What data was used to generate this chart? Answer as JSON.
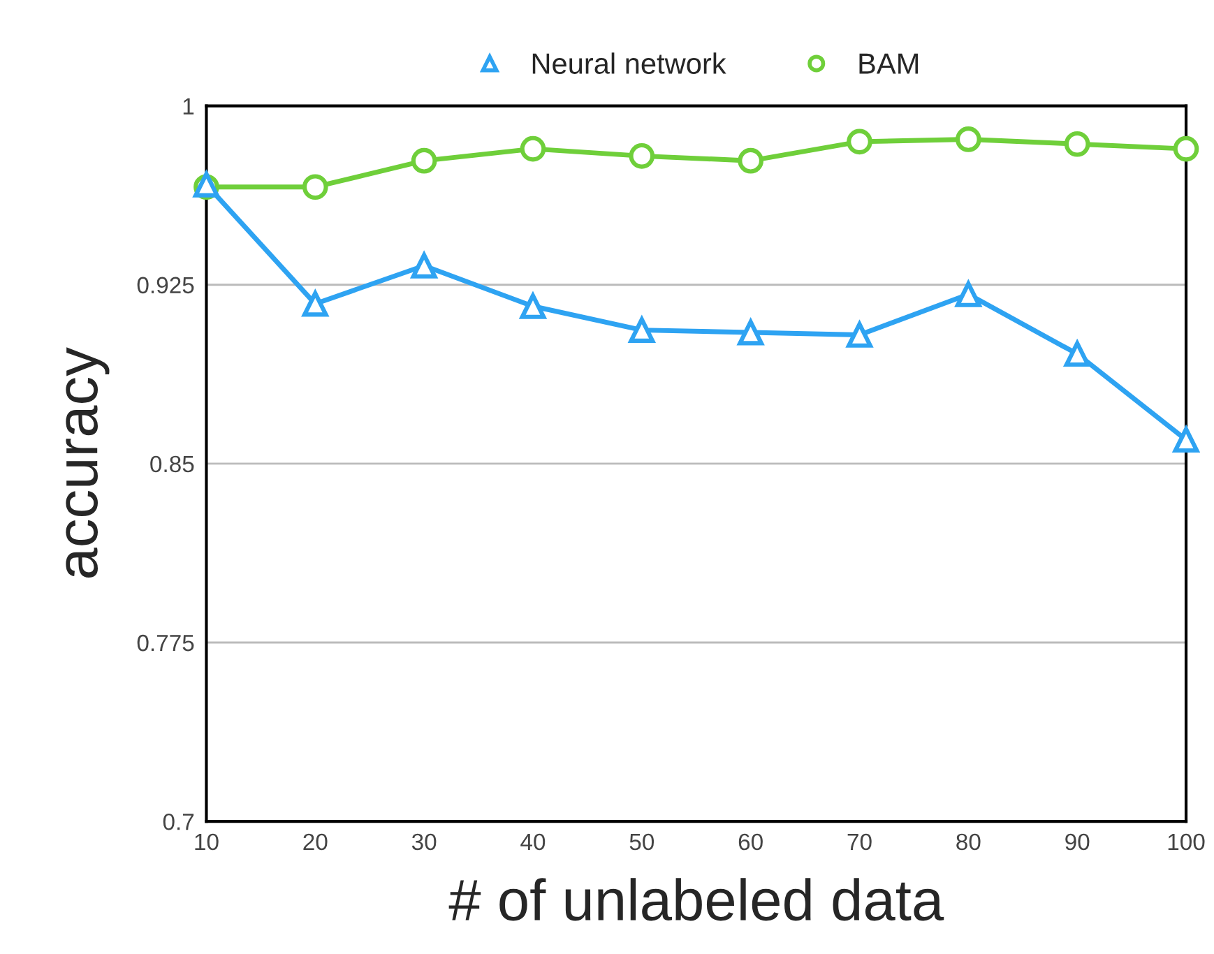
{
  "chart_data": {
    "type": "line",
    "xlabel": "# of unlabeled data",
    "ylabel": "accuracy",
    "x": [
      10,
      20,
      30,
      40,
      50,
      60,
      70,
      80,
      90,
      100
    ],
    "series": [
      {
        "name": "Neural network",
        "color": "#2ea3f2",
        "marker": "triangle",
        "values": [
          0.967,
          0.917,
          0.933,
          0.916,
          0.906,
          0.905,
          0.904,
          0.921,
          0.896,
          0.86
        ]
      },
      {
        "name": "BAM",
        "color": "#6fcf3a",
        "marker": "circle",
        "values": [
          0.966,
          0.966,
          0.977,
          0.982,
          0.979,
          0.977,
          0.985,
          0.986,
          0.984,
          0.982
        ]
      }
    ],
    "xlim": [
      10,
      100
    ],
    "xticks": [
      10,
      20,
      30,
      40,
      50,
      60,
      70,
      80,
      90,
      100
    ],
    "ylim": [
      0.7,
      1
    ],
    "yticks": [
      0.7,
      0.775,
      0.85,
      0.925,
      1
    ],
    "grid": "y",
    "legend": "top",
    "line_style": "solid"
  }
}
